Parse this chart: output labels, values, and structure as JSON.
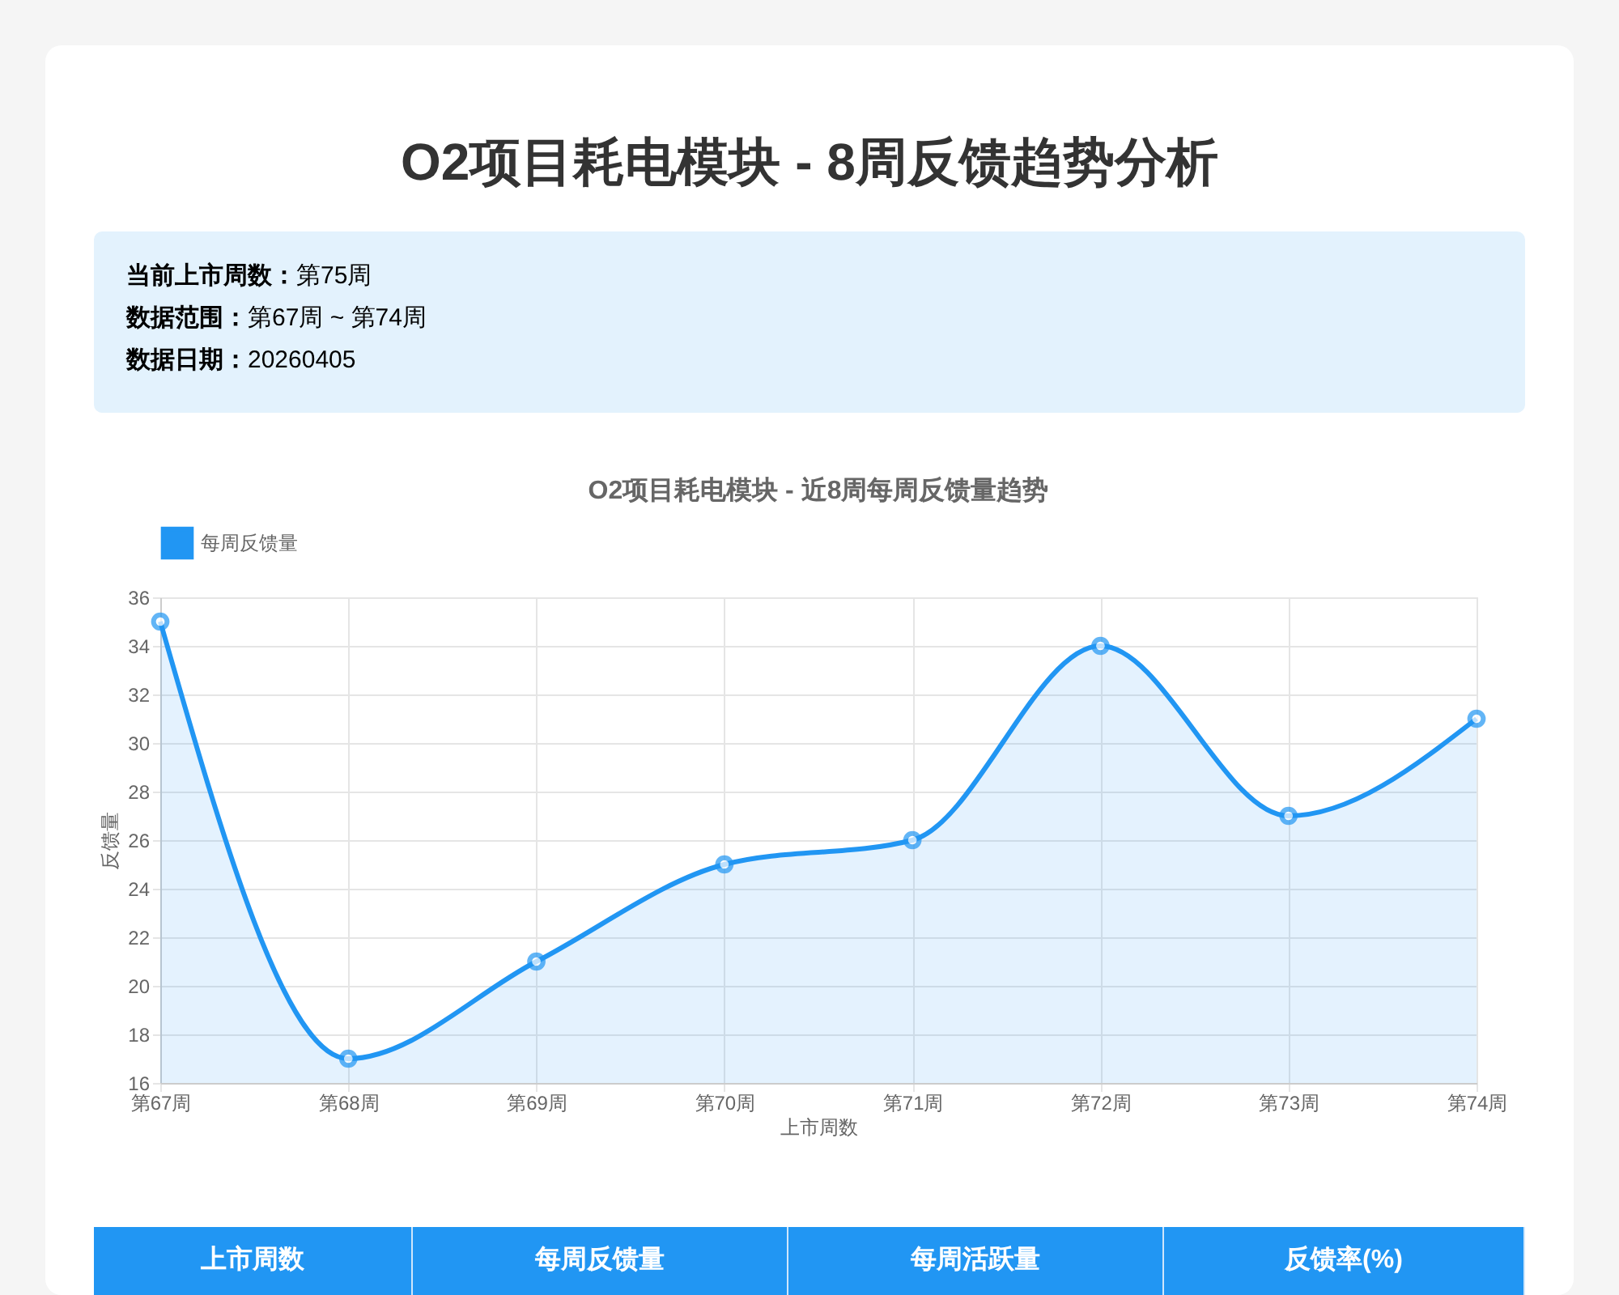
{
  "chart_data": [
    {
      "type": "other",
      "title": "O2项目耗电模块 - 8周反馈趋势分析",
      "annotations": [
        "当前上市周数：第75周",
        "数据范围：第67周 ~ 第74周",
        "数据日期：20260405"
      ]
    },
    {
      "type": "area",
      "title": "O2项目耗电模块 - 近8周每周反馈量趋势",
      "xlabel": "上市周数",
      "ylabel": "反馈量",
      "categories": [
        "第67周",
        "第68周",
        "第69周",
        "第70周",
        "第71周",
        "第72周",
        "第73周",
        "第74周"
      ],
      "series": [
        {
          "name": "每周反馈量",
          "color": "#2196f3",
          "values": [
            35,
            17,
            21,
            25,
            26,
            34,
            27,
            31
          ]
        }
      ],
      "ylim": [
        16,
        36
      ],
      "yticks": [
        16,
        18,
        20,
        22,
        24,
        26,
        28,
        30,
        32,
        34,
        36
      ],
      "grid": true,
      "legend": "top",
      "marker": "circle"
    },
    {
      "type": "other",
      "annotations": [
        "上市周数",
        "每周反馈量",
        "每周活跃量",
        "反馈率(%)"
      ]
    }
  ]
}
